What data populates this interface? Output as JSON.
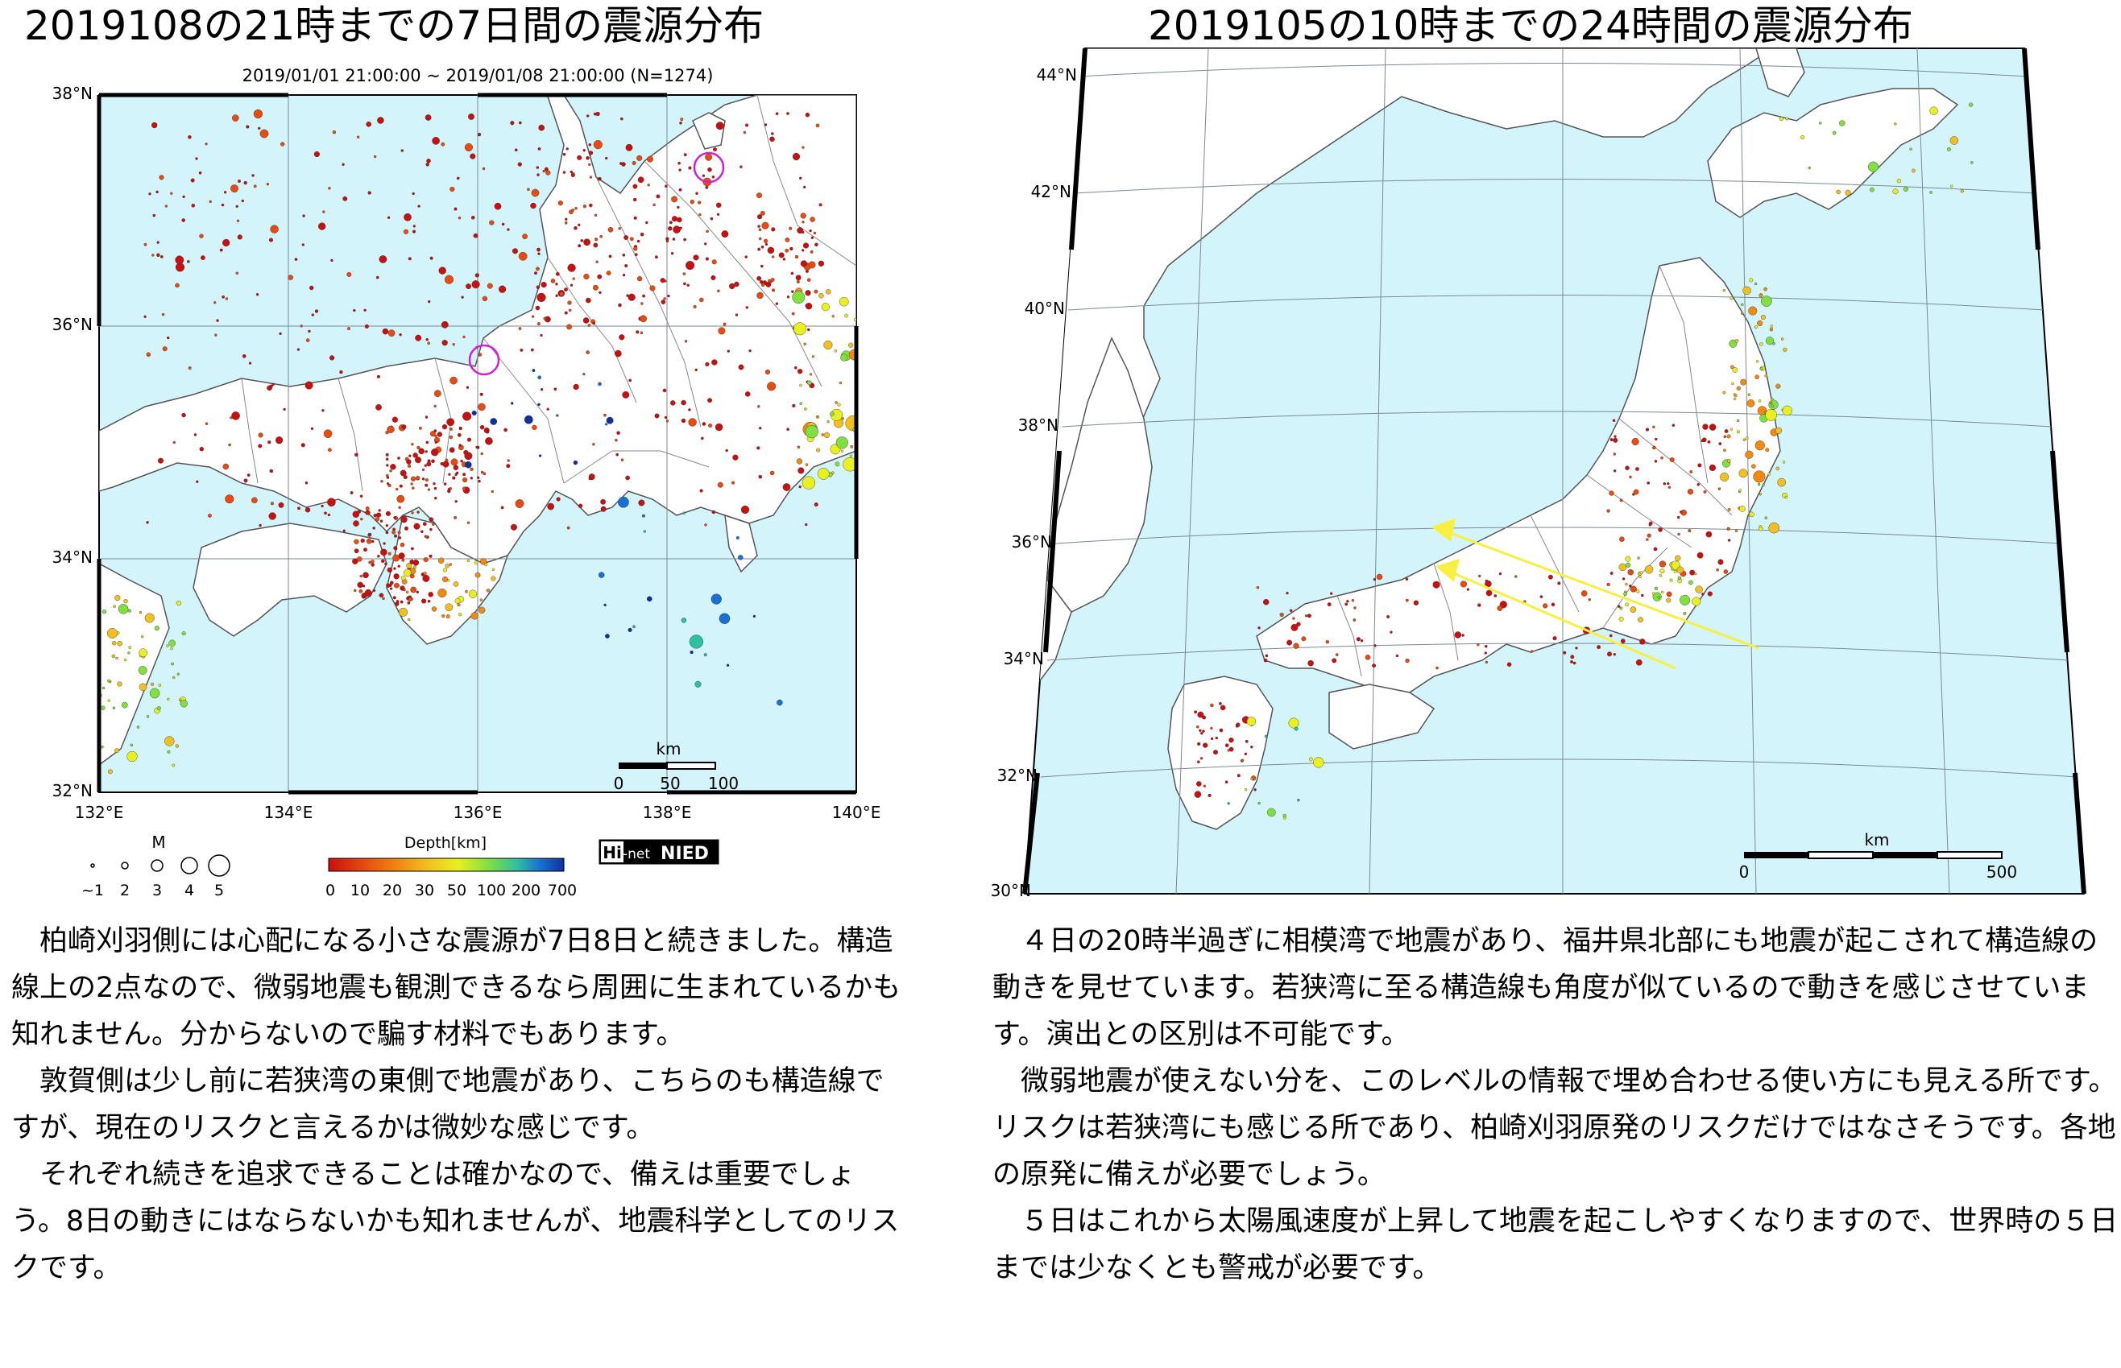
{
  "left_panel": {
    "title": "2019108の21時までの7日間の震源分布",
    "map": {
      "period_label": "2019/01/01 21:00:00 ~ 2019/01/08 21:00:00 (N=1274)",
      "lat_labels": [
        "38°N",
        "36°N",
        "34°N",
        "32°N"
      ],
      "lon_labels": [
        "132°E",
        "134°E",
        "136°E",
        "138°E",
        "140°E"
      ],
      "scale_unit": "km",
      "scale_ticks": [
        "0",
        "50",
        "100"
      ],
      "logo": {
        "hi": "Hi",
        "net": "-net",
        "nied": "NIED"
      }
    },
    "magnitude_legend": {
      "title": "M",
      "labels": [
        "~1",
        "2",
        "3",
        "4",
        "5"
      ]
    },
    "depth_legend": {
      "title": "Depth[km]",
      "labels": [
        "0",
        "10",
        "20",
        "30",
        "50",
        "100",
        "200",
        "700"
      ],
      "colors": [
        "#c81010",
        "#e84a10",
        "#f08a10",
        "#f0c020",
        "#e8f020",
        "#80e040",
        "#30c0a0",
        "#1870d0",
        "#1030a0"
      ]
    },
    "highlight_circle_color": "#d020d0"
  },
  "right_panel": {
    "title": "2019105の10時までの24時間の震源分布",
    "map": {
      "lat_labels": [
        "44°N",
        "42°N",
        "40°N",
        "38°N",
        "36°N",
        "34°N",
        "32°N",
        "30°N"
      ],
      "scale_unit": "km",
      "scale_ticks": [
        "0",
        "500"
      ]
    },
    "arrow_color": "#f8f040"
  },
  "left_text": [
    "柏崎刈羽側には心配になる小さな震源が7日8日と続きました。構造線上の2点なので、微弱地震も観測できるなら周囲に生まれているかも知れません。分からないので騙す材料でもあります。",
    "敦賀側は少し前に若狭湾の東側で地震があり、こちらのも構造線ですが、現在のリスクと言えるかは微妙な感じです。",
    "それぞれ続きを追求できることは確かなので、備えは重要でしょう。8日の動きにはならないかも知れませんが、地震科学としてのリスクです。"
  ],
  "right_text": [
    "４日の20時半過ぎに相模湾で地震があり、福井県北部にも地震が起こされて構造線の動きを見せています。若狭湾に至る構造線も角度が似ているので動きを感じさせています。演出との区別は不可能です。",
    "微弱地震が使えない分を、このレベルの情報で埋め合わせる使い方にも見える所です。リスクは若狭湾にも感じる所であり、柏崎刈羽原発のリスクだけではなさそうです。各地の原発に備えが必要でしょう。",
    "５日はこれから太陽風速度が上昇して地震を起こしやすくなりますので、世界時の５日までは少なくとも警戒が必要です。"
  ]
}
